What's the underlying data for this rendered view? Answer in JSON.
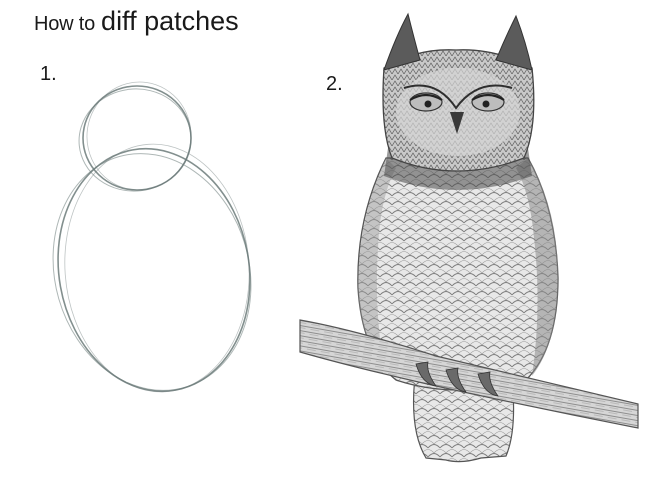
{
  "title": {
    "prefix": "How to",
    "subject": "diff patches"
  },
  "steps": [
    {
      "number": "1.",
      "illustration": "two-circles-sketch"
    },
    {
      "number": "2.",
      "illustration": "detailed-owl-drawing"
    }
  ],
  "colors": {
    "background": "#ffffff",
    "text": "#1a1a1a",
    "pencil": "#6c7b7a",
    "owl_dark": "#3f3f3f",
    "owl_mid": "#8a8a8a",
    "owl_light": "#d9d9d9"
  }
}
